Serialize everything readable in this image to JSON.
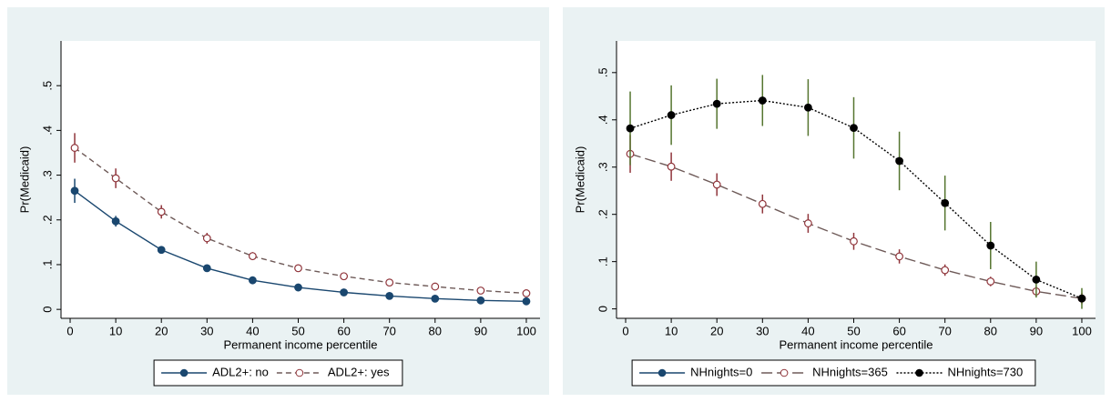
{
  "chart_data": [
    {
      "type": "line",
      "xlabel": "Permanent income percentile",
      "ylabel": "Pr(Medicaid)",
      "x": [
        1,
        10,
        20,
        30,
        40,
        50,
        60,
        70,
        80,
        90,
        100
      ],
      "xlim": [
        -2,
        103
      ],
      "xticks": [
        0,
        10,
        20,
        30,
        40,
        50,
        60,
        70,
        80,
        90,
        100
      ],
      "ylim": [
        -0.02,
        0.6
      ],
      "yticks": [
        0,
        {
          "value": 0.1,
          "label": ".1"
        },
        {
          "value": 0.2,
          "label": ".2"
        },
        {
          "value": 0.3,
          "label": ".3"
        },
        {
          "value": 0.4,
          "label": ".4"
        },
        {
          "value": 0.5,
          "label": ".5"
        }
      ],
      "legend": "bottom",
      "series": [
        {
          "name": "ADL2+: no",
          "color": "#1a476f",
          "error_color": "#1a476f",
          "marker": "filled",
          "dash": "solid",
          "values": [
            0.265,
            0.197,
            0.133,
            0.092,
            0.065,
            0.049,
            0.038,
            0.03,
            0.024,
            0.02,
            0.018
          ],
          "errors": [
            0.027,
            0.012,
            0.005,
            0.003,
            0.003,
            0.002,
            0.002,
            0.002,
            0.002,
            0.002,
            0.002
          ]
        },
        {
          "name": "ADL2+: yes",
          "color": "#6e5a58",
          "error_color": "#90353b",
          "marker": "hollow",
          "dash": "dash",
          "values": [
            0.361,
            0.293,
            0.218,
            0.159,
            0.119,
            0.092,
            0.074,
            0.06,
            0.051,
            0.042,
            0.036
          ],
          "errors": [
            0.033,
            0.022,
            0.015,
            0.012,
            0.009,
            0.007,
            0.006,
            0.005,
            0.005,
            0.005,
            0.006
          ]
        }
      ]
    },
    {
      "type": "line",
      "xlabel": "Permanent income percentile",
      "ylabel": "Pr(Medicaid)",
      "x": [
        1,
        10,
        20,
        30,
        40,
        50,
        60,
        70,
        80,
        90,
        100
      ],
      "xlim": [
        -2,
        103
      ],
      "xticks": [
        0,
        10,
        20,
        30,
        40,
        50,
        60,
        70,
        80,
        90,
        100
      ],
      "ylim": [
        -0.02,
        0.567
      ],
      "yticks": [
        0,
        {
          "value": 0.1,
          "label": ".1"
        },
        {
          "value": 0.2,
          "label": ".2"
        },
        {
          "value": 0.3,
          "label": ".3"
        },
        {
          "value": 0.4,
          "label": ".4"
        },
        {
          "value": 0.5,
          "label": ".5"
        }
      ],
      "legend": "bottom",
      "series": [
        {
          "name": "NHnights=0",
          "color": "#1a476f",
          "error_color": "#1a476f",
          "marker": "filled",
          "dash": "solid",
          "values": [
            null,
            null,
            null,
            null,
            null,
            null,
            null,
            null,
            null,
            null,
            null
          ],
          "errors": [
            null,
            null,
            null,
            null,
            null,
            null,
            null,
            null,
            null,
            null,
            null
          ]
        },
        {
          "name": "NHnights=365",
          "color": "#6e5a58",
          "error_color": "#90353b",
          "marker": "hollow",
          "dash": "longdash",
          "values": [
            0.328,
            0.301,
            0.263,
            0.222,
            0.181,
            0.143,
            0.111,
            0.082,
            0.058,
            0.037,
            0.022
          ],
          "errors": [
            0.04,
            0.03,
            0.024,
            0.02,
            0.02,
            0.018,
            0.015,
            0.012,
            0.01,
            0.01,
            0.012
          ]
        },
        {
          "name": "NHnights=730",
          "color": "#000000",
          "error_color": "#55752f",
          "marker": "filled",
          "dash": "dot",
          "values": [
            0.382,
            0.41,
            0.434,
            0.441,
            0.426,
            0.383,
            0.313,
            0.224,
            0.134,
            0.062,
            0.022
          ],
          "errors": [
            0.078,
            0.063,
            0.053,
            0.054,
            0.06,
            0.065,
            0.062,
            0.058,
            0.05,
            0.038,
            0.022
          ]
        }
      ]
    }
  ]
}
